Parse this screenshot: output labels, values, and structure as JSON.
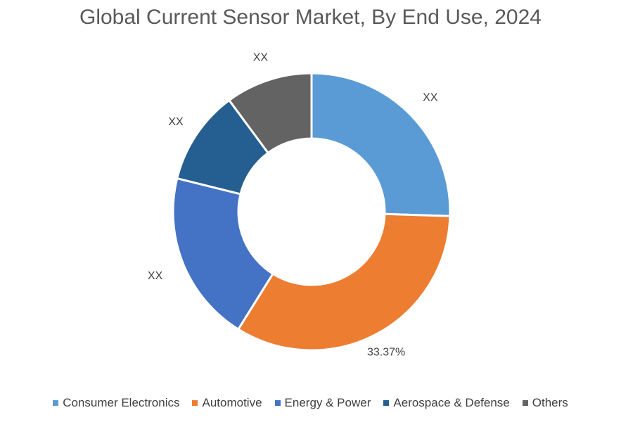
{
  "chart_data": {
    "type": "pie",
    "donut": true,
    "title": "Global Current Sensor Market, By End Use, 2024",
    "categories": [
      "Consumer Electronics",
      "Automotive",
      "Energy & Power",
      "Aerospace & Defense",
      "Others"
    ],
    "values": [
      25.5,
      33.37,
      20.0,
      11.0,
      10.13
    ],
    "data_labels": [
      "XX",
      "33.37%",
      "XX",
      "XX",
      "XX"
    ],
    "colors": [
      "#5B9BD5",
      "#ED7D31",
      "#4472C4",
      "#255E91",
      "#636363"
    ],
    "legend_position": "bottom"
  }
}
